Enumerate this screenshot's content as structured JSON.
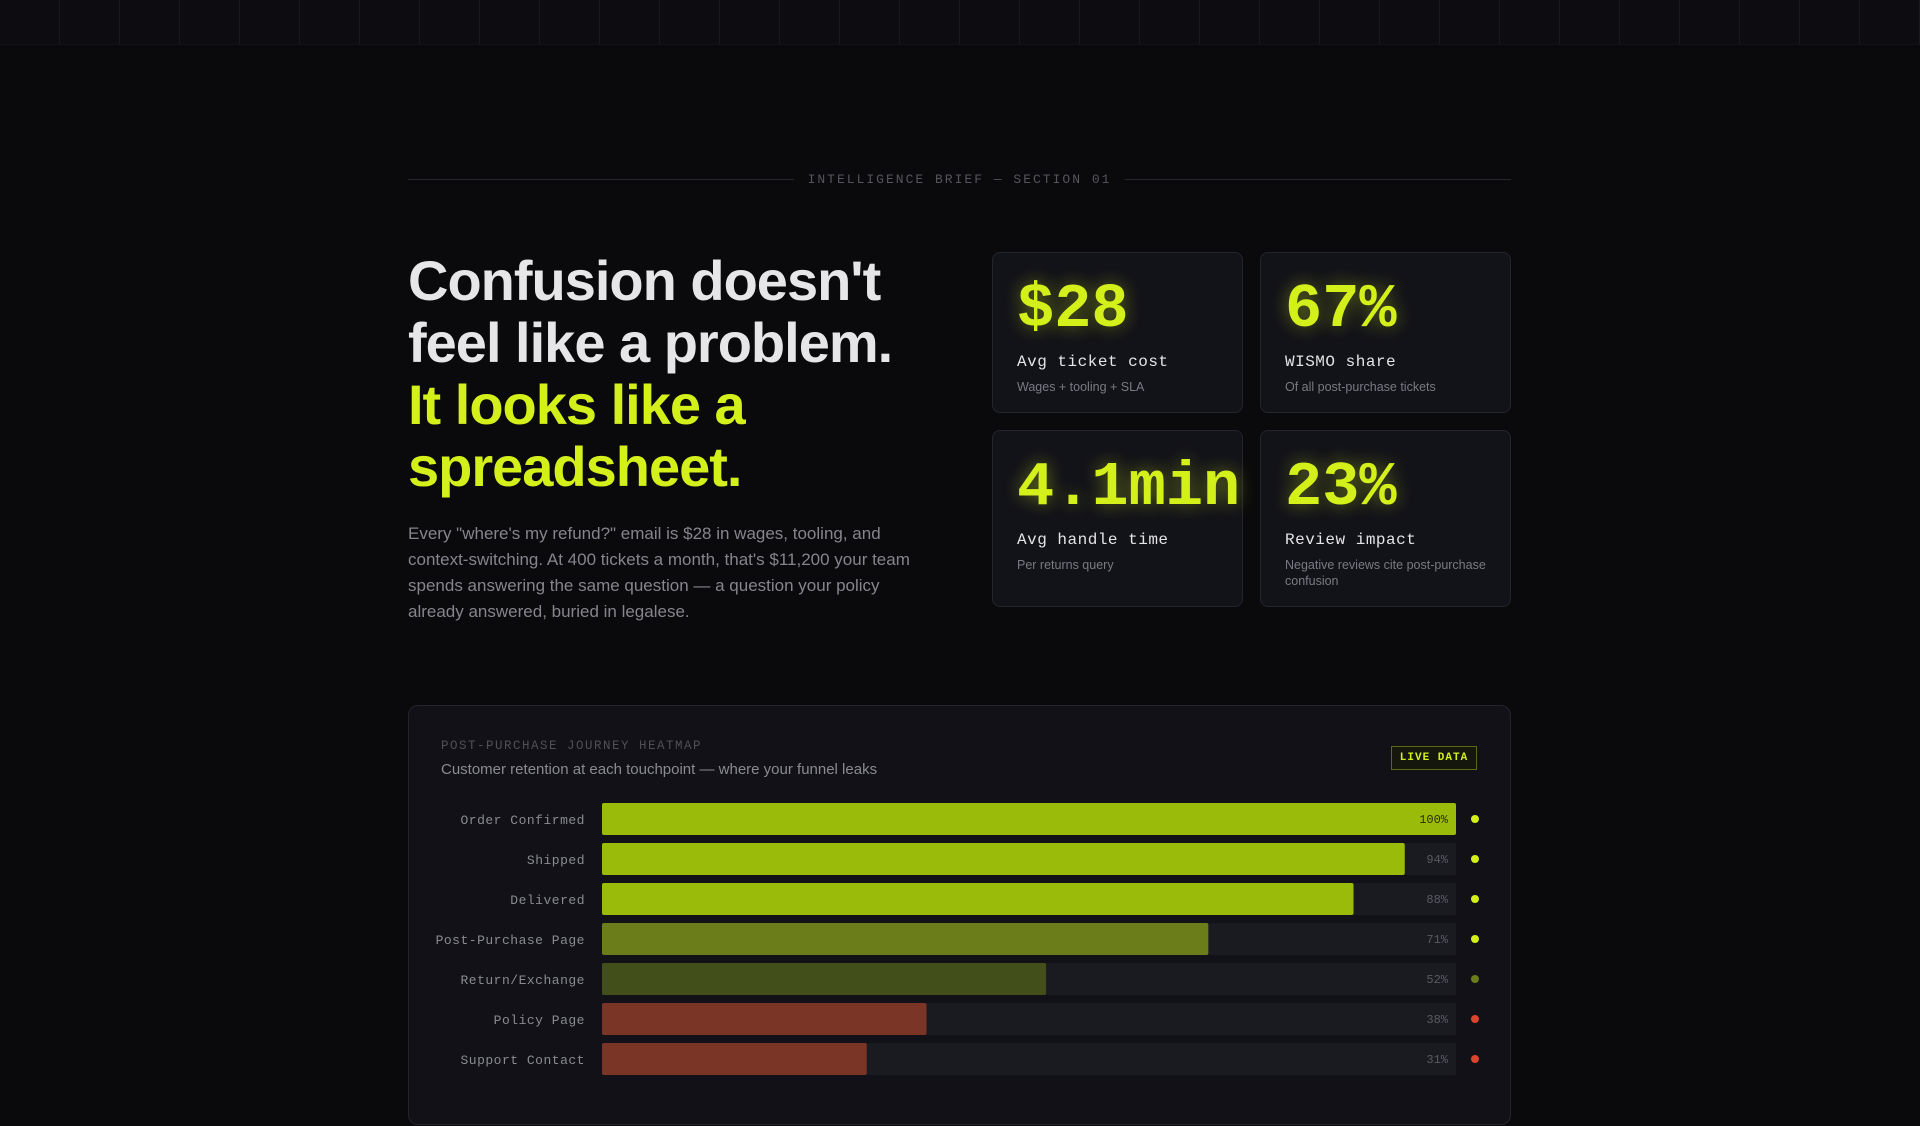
{
  "section_label": "INTELLIGENCE BRIEF — SECTION 01",
  "headline": {
    "line_white": "Confusion doesn't feel like a problem.",
    "line_accent": "It looks like a spreadsheet."
  },
  "paragraph": "Every \"where's my refund?\" email is $28 in wages, tooling, and context-switching. At 400 tickets a month, that's $11,200 your team spends answering the same question — a question your policy already answered, buried in legalese.",
  "cards": [
    {
      "value": "$28",
      "label": "Avg ticket cost",
      "note": "Wages + tooling + SLA"
    },
    {
      "value": "67%",
      "label": "WISMO share",
      "note": "Of all post-purchase tickets"
    },
    {
      "value": "4.1min",
      "label": "Avg handle time",
      "note": "Per returns query"
    },
    {
      "value": "23%",
      "label": "Review impact",
      "note": "Negative reviews cite post-purchase confusion"
    }
  ],
  "heatmap": {
    "title": "POST-PURCHASE JOURNEY HEATMAP",
    "subtitle": "Customer retention at each touchpoint — where your funnel leaks",
    "badge": "LIVE DATA",
    "max": 100,
    "rows": [
      {
        "label": "Order Confirmed",
        "value": 100,
        "value_label": "100%",
        "color": "#9bbb0b",
        "dot_color": "#d4f01a"
      },
      {
        "label": "Shipped",
        "value": 94,
        "value_label": "94%",
        "color": "#9bbb0b",
        "dot_color": "#d4f01a"
      },
      {
        "label": "Delivered",
        "value": 88,
        "value_label": "88%",
        "color": "#9bbb0b",
        "dot_color": "#d4f01a"
      },
      {
        "label": "Post-Purchase Page",
        "value": 71,
        "value_label": "71%",
        "color": "#6b7c1a",
        "dot_color": "#d4f01a"
      },
      {
        "label": "Return/Exchange",
        "value": 52,
        "value_label": "52%",
        "color": "#434f1b",
        "dot_color": "#6b7c1a"
      },
      {
        "label": "Policy Page",
        "value": 38,
        "value_label": "38%",
        "color": "#7a3526",
        "dot_color": "#d9452e"
      },
      {
        "label": "Support Contact",
        "value": 31,
        "value_label": "31%",
        "color": "#7a3526",
        "dot_color": "#d9452e"
      }
    ]
  }
}
